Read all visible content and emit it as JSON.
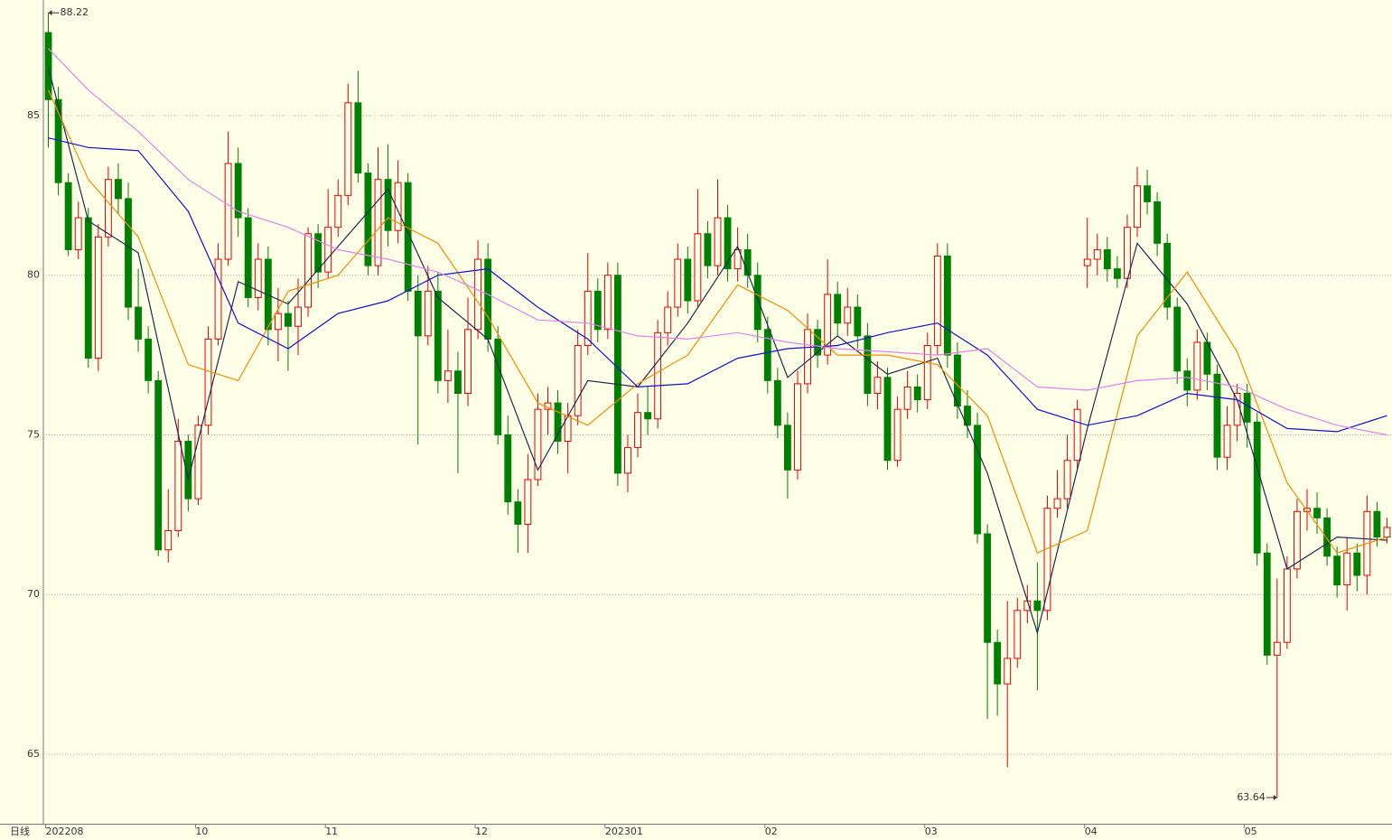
{
  "chart_data": {
    "type": "candlestick",
    "period_label": "日线",
    "categories": [
      "202208",
      null,
      null,
      null,
      null,
      null,
      null,
      null,
      null,
      null,
      null,
      null,
      null,
      null,
      null,
      "10",
      null,
      null,
      null,
      null,
      null,
      null,
      null,
      null,
      null,
      null,
      null,
      null,
      "11",
      null,
      null,
      null,
      null,
      null,
      null,
      null,
      null,
      null,
      null,
      null,
      null,
      null,
      null,
      "12",
      null,
      null,
      null,
      null,
      null,
      null,
      null,
      null,
      null,
      null,
      null,
      null,
      "202301",
      null,
      null,
      null,
      null,
      null,
      null,
      null,
      null,
      null,
      null,
      null,
      null,
      null,
      null,
      null,
      "02",
      null,
      null,
      null,
      null,
      null,
      null,
      null,
      null,
      null,
      null,
      null,
      null,
      null,
      null,
      null,
      "03",
      null,
      null,
      null,
      null,
      null,
      null,
      null,
      null,
      null,
      null,
      null,
      null,
      null,
      null,
      null,
      "04",
      null,
      null,
      null,
      null,
      null,
      null,
      null,
      null,
      null,
      null,
      null,
      null,
      null,
      null,
      null,
      "05",
      null,
      null,
      null,
      null,
      null,
      null,
      null,
      null,
      null,
      null,
      null,
      null,
      null,
      null
    ],
    "open": [
      87.6,
      85.5,
      82.9,
      80.8,
      81.8,
      77.4,
      81.2,
      83.0,
      82.4,
      79.0,
      78.0,
      76.7,
      71.4,
      72.0,
      74.8,
      73.0,
      75.3,
      78.0,
      80.5,
      83.5,
      81.8,
      79.3,
      80.5,
      78.3,
      78.8,
      78.4,
      79.0,
      81.3,
      80.1,
      81.5,
      82.5,
      85.4,
      83.2,
      80.3,
      83.0,
      81.4,
      82.9,
      79.5,
      78.1,
      79.5,
      76.7,
      77.0,
      76.3,
      78.3,
      80.5,
      78.0,
      75.0,
      72.9,
      72.2,
      73.6,
      75.8,
      76.0,
      74.8,
      75.6,
      77.8,
      79.5,
      78.3,
      80.0,
      73.8,
      74.6,
      75.7,
      75.5,
      78.2,
      79.0,
      80.5,
      79.2,
      81.3,
      80.3,
      81.8,
      80.2,
      80.8,
      80.0,
      78.3,
      76.7,
      75.3,
      73.9,
      76.6,
      78.3,
      77.5,
      79.4,
      78.5,
      79.0,
      78.1,
      76.3,
      76.8,
      74.2,
      75.8,
      76.5,
      76.1,
      77.8,
      80.6,
      77.5,
      75.9,
      75.3,
      71.9,
      68.5,
      67.2,
      68.0,
      69.5,
      69.8,
      69.5,
      72.7,
      73.0,
      74.2,
      80.3,
      80.5,
      80.8,
      80.2,
      79.9,
      81.5,
      82.8,
      82.3,
      81.0,
      79.0,
      77.0,
      76.4,
      77.9,
      76.9,
      74.3,
      75.3,
      76.3,
      75.4,
      71.3,
      68.1,
      68.5,
      70.8,
      72.6,
      72.7,
      72.4,
      71.2,
      70.3,
      71.3,
      70.6,
      72.6,
      71.8
    ],
    "high": [
      88.22,
      85.9,
      83.2,
      82.3,
      82.1,
      81.6,
      83.4,
      83.5,
      82.9,
      80.2,
      78.4,
      77.0,
      73.3,
      75.5,
      75.0,
      75.6,
      78.4,
      81.0,
      84.5,
      84.0,
      82.1,
      81.0,
      80.9,
      79.6,
      79.2,
      79.9,
      81.5,
      81.6,
      82.7,
      83.0,
      86.0,
      86.4,
      83.5,
      84.0,
      84.1,
      83.6,
      83.2,
      80.0,
      80.3,
      80.1,
      78.3,
      77.6,
      79.3,
      81.1,
      81.0,
      78.4,
      75.6,
      73.3,
      74.4,
      76.3,
      76.5,
      76.4,
      76.0,
      78.3,
      80.7,
      79.9,
      80.4,
      80.4,
      75.0,
      76.3,
      76.5,
      78.6,
      79.5,
      81.0,
      80.9,
      82.7,
      81.7,
      83.0,
      82.2,
      81.5,
      81.3,
      80.4,
      78.7,
      77.1,
      75.7,
      77.0,
      78.8,
      78.6,
      80.5,
      79.8,
      79.6,
      79.4,
      78.5,
      77.3,
      77.1,
      76.2,
      77.0,
      76.9,
      78.2,
      81.0,
      81.0,
      77.9,
      76.4,
      75.7,
      72.2,
      68.9,
      69.8,
      69.9,
      70.3,
      71.0,
      73.1,
      73.9,
      75.0,
      76.1,
      81.8,
      81.3,
      81.2,
      80.6,
      81.9,
      83.4,
      83.3,
      82.6,
      81.3,
      79.3,
      77.4,
      78.3,
      78.2,
      77.2,
      75.9,
      76.6,
      76.6,
      75.7,
      71.6,
      70.5,
      71.2,
      73.0,
      73.3,
      73.2,
      72.7,
      71.5,
      71.8,
      71.6,
      73.1,
      72.9,
      72.4
    ],
    "low": [
      84.0,
      82.5,
      80.6,
      80.5,
      77.1,
      77.0,
      80.9,
      81.9,
      78.6,
      77.6,
      76.3,
      71.2,
      71.0,
      71.8,
      72.6,
      72.8,
      75.0,
      77.8,
      80.3,
      81.2,
      79.0,
      78.9,
      77.8,
      77.3,
      77.0,
      77.5,
      78.7,
      79.6,
      79.9,
      81.2,
      82.2,
      82.9,
      80.0,
      80.0,
      80.9,
      81.0,
      79.2,
      74.7,
      77.8,
      76.3,
      76.0,
      73.8,
      75.9,
      78.0,
      77.6,
      74.7,
      72.5,
      71.3,
      71.3,
      73.4,
      75.0,
      74.4,
      73.8,
      75.3,
      77.5,
      77.9,
      78.0,
      73.4,
      73.2,
      74.3,
      75.0,
      75.2,
      77.8,
      78.7,
      78.8,
      79.0,
      79.9,
      80.0,
      79.8,
      79.8,
      79.6,
      77.9,
      76.3,
      74.9,
      73.0,
      73.6,
      76.3,
      77.1,
      77.2,
      78.1,
      78.1,
      77.7,
      75.9,
      75.8,
      73.9,
      74.0,
      75.5,
      75.7,
      75.8,
      77.5,
      77.1,
      75.5,
      74.9,
      71.6,
      66.1,
      66.2,
      64.6,
      67.7,
      69.1,
      67.0,
      69.2,
      72.4,
      72.7,
      73.9,
      79.6,
      80.0,
      79.8,
      79.6,
      79.6,
      81.2,
      81.9,
      80.6,
      78.6,
      76.6,
      75.9,
      76.1,
      76.4,
      73.9,
      73.9,
      74.8,
      74.6,
      70.9,
      67.8,
      63.64,
      68.3,
      70.5,
      72.0,
      71.9,
      70.9,
      69.9,
      69.5,
      70.1,
      70.0,
      71.5,
      71.6
    ],
    "close": [
      85.5,
      82.9,
      80.8,
      81.8,
      77.4,
      81.2,
      83.0,
      82.4,
      79.0,
      78.0,
      76.7,
      71.4,
      72.0,
      74.8,
      73.0,
      75.3,
      78.0,
      80.5,
      83.5,
      81.8,
      79.3,
      80.5,
      78.3,
      78.8,
      78.4,
      79.0,
      81.3,
      80.1,
      81.5,
      82.5,
      85.4,
      83.2,
      80.3,
      83.0,
      81.4,
      82.9,
      79.5,
      78.1,
      79.5,
      76.7,
      77.0,
      76.3,
      78.3,
      80.5,
      78.0,
      75.0,
      72.9,
      72.2,
      73.6,
      75.8,
      76.0,
      74.8,
      75.6,
      77.8,
      79.5,
      78.3,
      80.0,
      73.8,
      74.6,
      75.7,
      75.5,
      78.2,
      79.0,
      80.5,
      79.2,
      81.3,
      80.3,
      81.8,
      80.2,
      80.8,
      80.0,
      78.3,
      76.7,
      75.3,
      73.9,
      76.6,
      78.3,
      77.5,
      79.4,
      78.5,
      79.0,
      78.1,
      76.3,
      76.8,
      74.2,
      75.8,
      76.5,
      76.1,
      77.8,
      80.6,
      77.5,
      75.9,
      75.3,
      71.9,
      68.5,
      67.2,
      68.0,
      69.5,
      69.8,
      69.5,
      72.7,
      73.0,
      74.2,
      75.8,
      80.5,
      80.8,
      80.2,
      79.9,
      81.5,
      82.8,
      82.3,
      81.0,
      79.0,
      77.0,
      76.4,
      77.9,
      76.9,
      74.3,
      75.3,
      76.3,
      75.4,
      71.3,
      68.1,
      68.5,
      70.8,
      72.6,
      72.7,
      72.4,
      71.2,
      70.3,
      71.3,
      70.6,
      72.6,
      71.8,
      72.1
    ],
    "up_color": "#e00000",
    "down_color": "#008000",
    "max_label": "88.22",
    "min_label": "63.64",
    "lines": [
      {
        "color": "#1a2a50",
        "x": [
          0,
          4,
          9,
          14,
          19,
          24,
          29,
          34,
          39,
          44,
          49,
          54,
          59,
          64,
          69,
          74,
          79,
          84,
          89,
          94,
          99,
          104,
          109,
          114,
          119,
          124,
          129,
          134
        ],
        "values": [
          86.5,
          81.7,
          80.7,
          73.6,
          79.8,
          79.1,
          80.9,
          82.7,
          79.3,
          78.0,
          73.9,
          76.7,
          76.5,
          78.5,
          80.9,
          76.8,
          78.1,
          76.9,
          77.4,
          73.8,
          68.8,
          75.2,
          81.0,
          79.1,
          76.1,
          70.8,
          71.8,
          71.7
        ]
      },
      {
        "color": "#f08c00",
        "x": [
          0,
          4,
          9,
          14,
          19,
          24,
          29,
          34,
          39,
          44,
          49,
          54,
          59,
          64,
          69,
          74,
          79,
          84,
          89,
          94,
          99,
          104,
          109,
          114,
          119,
          124,
          129,
          134
        ],
        "values": [
          85.8,
          83.0,
          81.2,
          77.2,
          76.7,
          79.5,
          80.0,
          81.8,
          81.0,
          78.7,
          76.0,
          75.3,
          76.6,
          77.5,
          79.7,
          78.9,
          77.5,
          77.5,
          77.2,
          75.6,
          71.3,
          72.0,
          78.1,
          80.1,
          77.6,
          73.5,
          71.3,
          71.8
        ]
      },
      {
        "color": "#1010d0",
        "x": [
          0,
          4,
          9,
          14,
          19,
          24,
          29,
          34,
          39,
          44,
          49,
          54,
          59,
          64,
          69,
          74,
          79,
          84,
          89,
          94,
          99,
          104,
          109,
          114,
          119,
          124,
          129,
          134
        ],
        "values": [
          84.3,
          84.0,
          83.9,
          82.0,
          78.5,
          77.7,
          78.8,
          79.2,
          80.0,
          80.2,
          79.0,
          78.0,
          76.5,
          76.6,
          77.4,
          77.7,
          77.8,
          78.2,
          78.5,
          77.5,
          75.8,
          75.3,
          75.6,
          76.3,
          76.1,
          75.2,
          75.1,
          75.6
        ]
      },
      {
        "color": "#e080e8",
        "x": [
          0,
          4,
          9,
          14,
          19,
          24,
          29,
          34,
          39,
          44,
          49,
          54,
          59,
          64,
          69,
          74,
          79,
          84,
          89,
          94,
          99,
          104,
          109,
          114,
          119,
          124,
          129,
          134
        ],
        "values": [
          87.1,
          85.8,
          84.5,
          83.0,
          82.0,
          81.5,
          80.8,
          80.5,
          80.1,
          79.4,
          78.6,
          78.5,
          78.1,
          78.0,
          78.2,
          77.9,
          77.7,
          77.6,
          77.5,
          77.7,
          76.5,
          76.4,
          76.7,
          76.8,
          76.5,
          75.8,
          75.3,
          75.0
        ]
      }
    ],
    "ylim": [
      62.82,
      88.62
    ],
    "yticks": [
      65,
      70,
      75,
      80,
      85
    ],
    "grid": true
  }
}
